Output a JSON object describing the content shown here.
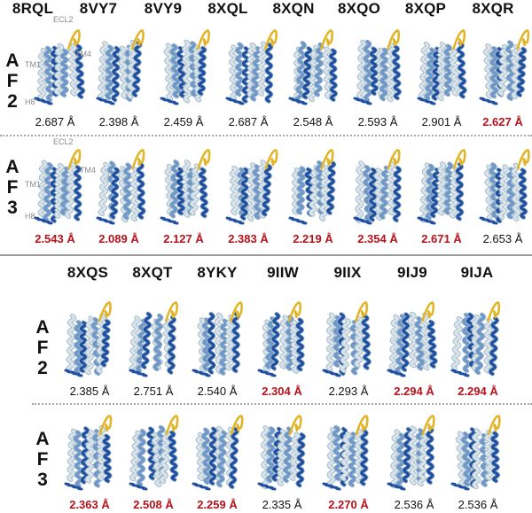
{
  "panel_top": {
    "ids": [
      "8RQL",
      "8VY7",
      "8VY9",
      "8XQL",
      "8XQN",
      "8XQO",
      "8XQP",
      "8XQR"
    ],
    "af2_label": [
      "A",
      "F",
      "2"
    ],
    "af3_label": [
      "A",
      "F",
      "3"
    ],
    "af2_rmsd": [
      {
        "value": "2.687 Å",
        "highlight": false
      },
      {
        "value": "2.398 Å",
        "highlight": false
      },
      {
        "value": "2.459 Å",
        "highlight": false
      },
      {
        "value": "2.687 Å",
        "highlight": false
      },
      {
        "value": "2.548 Å",
        "highlight": false
      },
      {
        "value": "2.593 Å",
        "highlight": false
      },
      {
        "value": "2.901 Å",
        "highlight": false
      },
      {
        "value": "2.627 Å",
        "highlight": true
      }
    ],
    "af3_rmsd": [
      {
        "value": "2.543 Å",
        "highlight": true
      },
      {
        "value": "2.089 Å",
        "highlight": true
      },
      {
        "value": "2.127 Å",
        "highlight": true
      },
      {
        "value": "2.383 Å",
        "highlight": true
      },
      {
        "value": "2.219 Å",
        "highlight": true
      },
      {
        "value": "2.354 Å",
        "highlight": true
      },
      {
        "value": "2.671 Å",
        "highlight": true
      },
      {
        "value": "2.653 Å",
        "highlight": false
      }
    ],
    "annotations_af2": {
      "ecl2": "ECL2",
      "tm4": "TM4",
      "tm1": "TM1",
      "h8": "H8"
    },
    "annotations_af3": {
      "ecl2": "ECL2",
      "tm4": "TM4",
      "tm1": "TM1",
      "h8": "H8"
    }
  },
  "panel_bottom": {
    "ids": [
      "8XQS",
      "8XQT",
      "8YKY",
      "9IIW",
      "9IIX",
      "9IJ9",
      "9IJA"
    ],
    "af2_label": [
      "A",
      "F",
      "2"
    ],
    "af3_label": [
      "A",
      "F",
      "3"
    ],
    "af2_rmsd": [
      {
        "value": "2.385 Å",
        "highlight": false
      },
      {
        "value": "2.751 Å",
        "highlight": false
      },
      {
        "value": "2.540 Å",
        "highlight": false
      },
      {
        "value": "2.304 Å",
        "highlight": true
      },
      {
        "value": "2.293 Å",
        "highlight": false
      },
      {
        "value": "2.294 Å",
        "highlight": true
      },
      {
        "value": "2.294 Å",
        "highlight": true
      }
    ],
    "af3_rmsd": [
      {
        "value": "2.363 Å",
        "highlight": true
      },
      {
        "value": "2.508 Å",
        "highlight": true
      },
      {
        "value": "2.259 Å",
        "highlight": true
      },
      {
        "value": "2.335 Å",
        "highlight": false
      },
      {
        "value": "2.270 Å",
        "highlight": true
      },
      {
        "value": "2.536 Å",
        "highlight": false
      },
      {
        "value": "2.536 Å",
        "highlight": false
      }
    ]
  },
  "colors": {
    "highlight_text": "#b5121b",
    "helix_dark": "#1f4fa0",
    "helix_mid": "#6e97c9",
    "helix_light": "#d9e4ea",
    "loop_yellow": "#e2b528",
    "separator": "#9a9a9a"
  }
}
